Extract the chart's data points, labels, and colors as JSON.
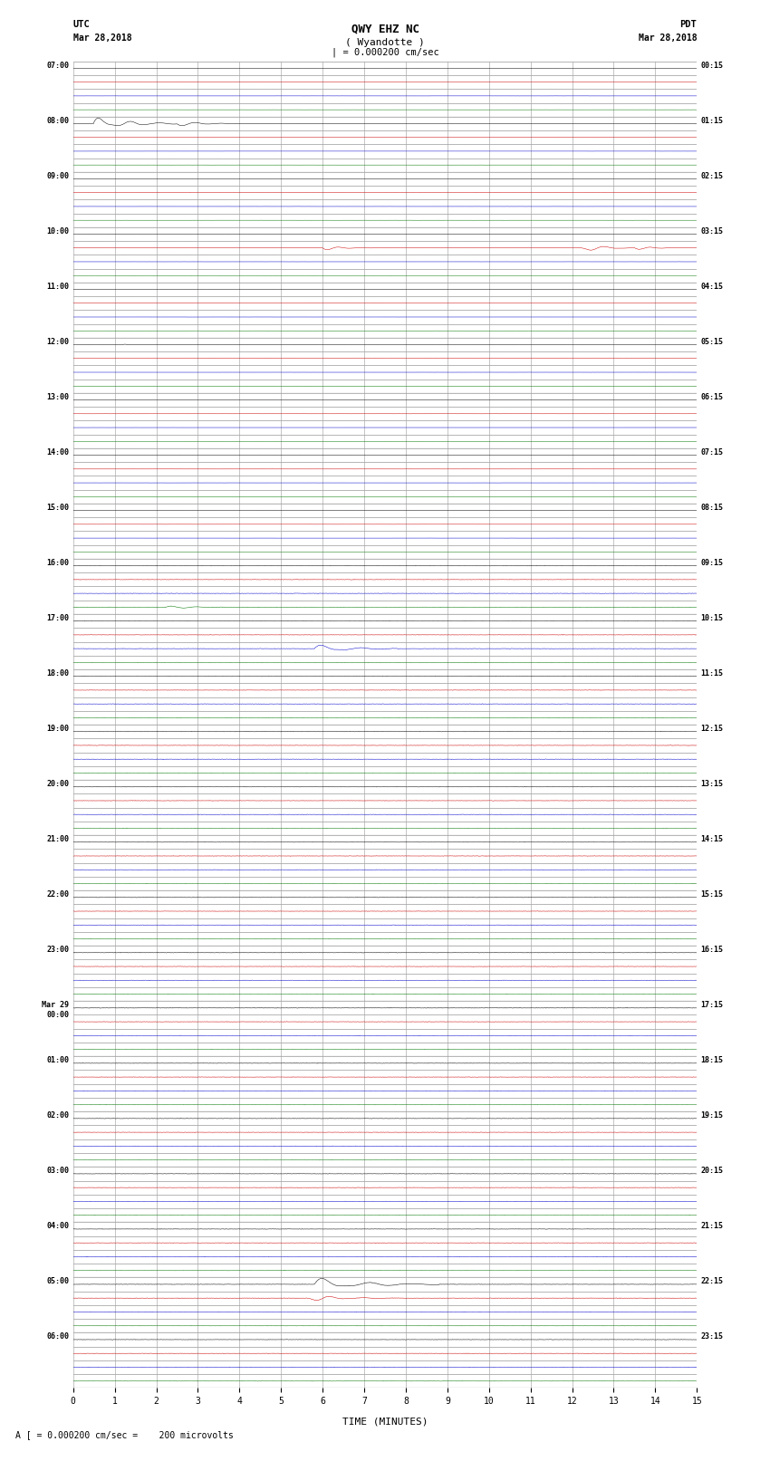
{
  "title_line1": "QWY EHZ NC",
  "title_line2": "( Wyandotte )",
  "title_line3": "| = 0.000200 cm/sec",
  "label_left_top1": "UTC",
  "label_left_top2": "Mar 28,2018",
  "label_right_top1": "PDT",
  "label_right_top2": "Mar 28,2018",
  "xlabel": "TIME (MINUTES)",
  "footer": "A [ = 0.000200 cm/sec =    200 microvolts",
  "utc_times": [
    "07:00",
    "08:00",
    "09:00",
    "10:00",
    "11:00",
    "12:00",
    "13:00",
    "14:00",
    "15:00",
    "16:00",
    "17:00",
    "18:00",
    "19:00",
    "20:00",
    "21:00",
    "22:00",
    "23:00",
    "Mar 29\n00:00",
    "01:00",
    "02:00",
    "03:00",
    "04:00",
    "05:00",
    "06:00"
  ],
  "pdt_times": [
    "00:15",
    "01:15",
    "02:15",
    "03:15",
    "04:15",
    "05:15",
    "06:15",
    "07:15",
    "08:15",
    "09:15",
    "10:15",
    "11:15",
    "12:15",
    "13:15",
    "14:15",
    "15:15",
    "16:15",
    "17:15",
    "18:15",
    "19:15",
    "20:15",
    "21:15",
    "22:15",
    "23:15"
  ],
  "n_hours": 24,
  "sub_rows_per_hour": 4,
  "x_min": 0,
  "x_max": 15,
  "bg_color": "#ffffff",
  "grid_color": "#999999",
  "minor_grid_color": "#cccccc",
  "trace_colors_cycle": [
    "#000000",
    "#cc0000",
    "#0000cc",
    "#007700"
  ],
  "noise_amplitude": 0.012,
  "seed": 12345
}
